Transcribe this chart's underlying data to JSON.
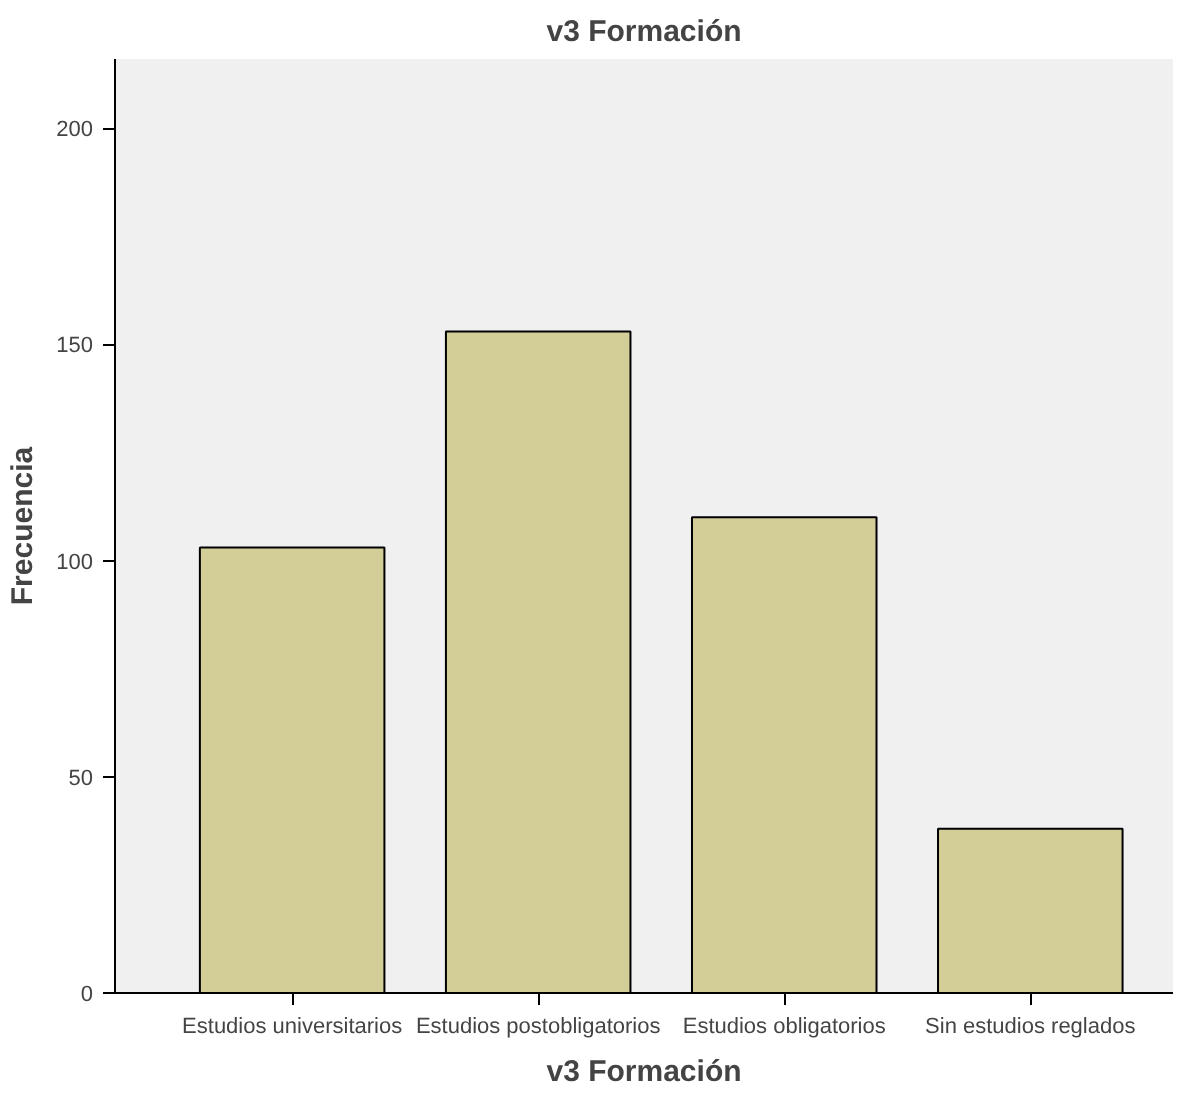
{
  "chart_data": {
    "type": "bar",
    "title": "v3 Formación",
    "xlabel": "v3 Formación",
    "ylabel": "Frecuencia",
    "categories": [
      "Estudios universitarios",
      "Estudios postobligatorios",
      "Estudios obligatorios",
      "Sin estudios reglados"
    ],
    "values": [
      103,
      153,
      110,
      38
    ],
    "color": "#d3ce97",
    "ylim": [
      0,
      216
    ],
    "yticks": [
      0,
      50,
      100,
      150,
      200
    ],
    "grid": false
  }
}
